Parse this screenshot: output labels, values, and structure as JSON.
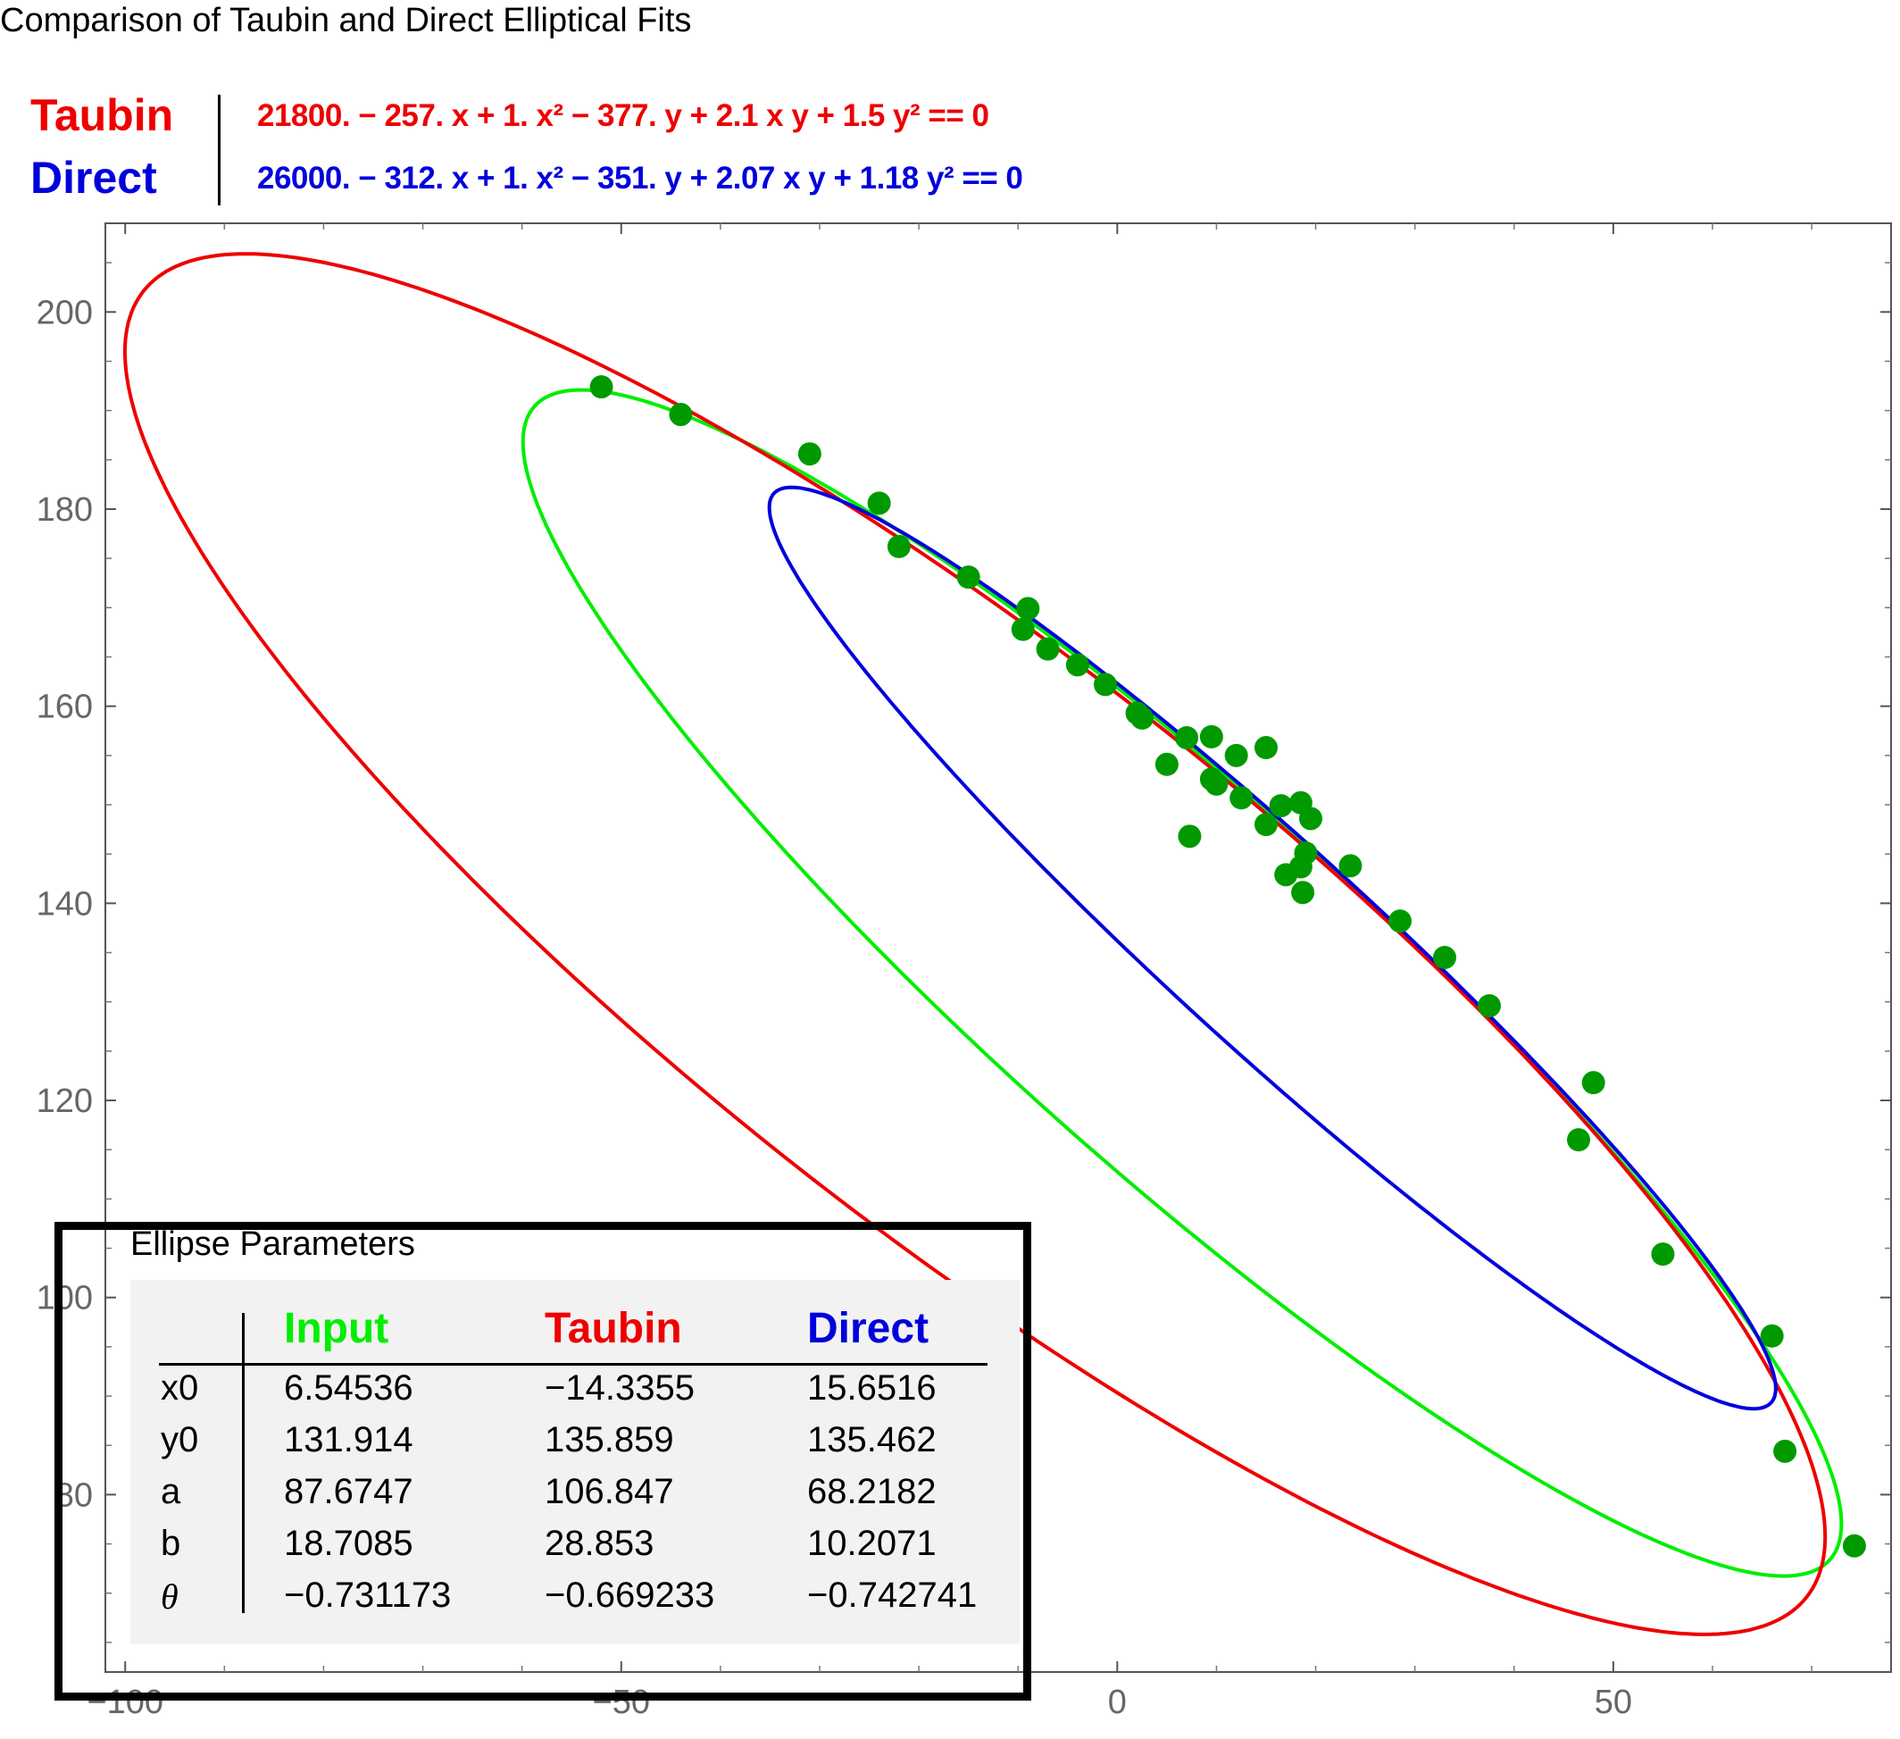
{
  "title": "Comparison of Taubin and Direct Elliptical Fits",
  "legend": {
    "taubin": {
      "name": "Taubin",
      "equation": "21800. − 257. x + 1. x² − 377. y + 2.1 x y + 1.5 y² == 0",
      "color": "#ee0000"
    },
    "direct": {
      "name": "Direct",
      "equation": "26000. − 312. x + 1. x² − 351. y + 2.07 x y + 1.18 y² == 0",
      "color": "#0000dd"
    }
  },
  "chart_data": {
    "type": "scatter",
    "title": "Comparison of Taubin and Direct Elliptical Fits",
    "xlabel": "",
    "ylabel": "",
    "xlim": [
      -102,
      78
    ],
    "ylim": [
      62,
      209
    ],
    "x_ticks": [
      -100,
      -50,
      0,
      50
    ],
    "x_tick_labels": [
      "-100",
      "-50",
      "0",
      "50"
    ],
    "y_ticks": [
      80,
      100,
      120,
      140,
      160,
      180,
      200
    ],
    "y_tick_labels": [
      "80",
      "100",
      "120",
      "140",
      "160",
      "180",
      "200"
    ],
    "grid": false,
    "points": {
      "color": "#009a00",
      "x": [
        -52,
        -44,
        -31,
        -24,
        -22,
        -15,
        -9,
        -9.5,
        -7,
        -4,
        -1.2,
        2,
        2.5,
        5,
        7,
        7.3,
        9.5,
        9.5,
        10,
        12,
        12.5,
        15,
        15,
        16.5,
        17,
        18.5,
        18.5,
        18.7,
        19,
        19.5,
        23.5,
        28.5,
        33,
        37.5,
        46.5,
        48,
        55,
        66,
        67.3,
        74.3
      ],
      "y": [
        192.4,
        189.6,
        185.6,
        180.6,
        176.2,
        173.1,
        169.9,
        167.8,
        165.8,
        164.2,
        162.2,
        159.3,
        158.8,
        154.1,
        156.8,
        146.8,
        156.9,
        152.6,
        152.1,
        155.0,
        150.7,
        155.8,
        148.0,
        149.9,
        142.9,
        150.2,
        143.7,
        141.1,
        145.1,
        148.6,
        143.8,
        138.2,
        134.5,
        129.6,
        116.0,
        121.8,
        104.4,
        96.1,
        84.4,
        74.8
      ]
    },
    "series": [
      {
        "name": "Input",
        "color": "#00ee00",
        "x0": 6.54536,
        "y0": 131.914,
        "a": 87.6747,
        "b": 18.7085,
        "theta": -0.731173
      },
      {
        "name": "Taubin",
        "color": "#ee0000",
        "x0": -14.3355,
        "y0": 135.859,
        "a": 106.847,
        "b": 28.853,
        "theta": -0.669233
      },
      {
        "name": "Direct",
        "color": "#0000dd",
        "x0": 15.6516,
        "y0": 135.462,
        "a": 68.2182,
        "b": 10.2071,
        "theta": -0.742741
      }
    ]
  },
  "params_table": {
    "title": "Ellipse Parameters",
    "headers": [
      "Input",
      "Taubin",
      "Direct"
    ],
    "header_colors": [
      "#00ee00",
      "#ee0000",
      "#0000dd"
    ],
    "row_labels": [
      "x0",
      "y0",
      "a",
      "b",
      "θ"
    ],
    "rows": [
      [
        "6.54536",
        "−14.3355",
        "15.6516"
      ],
      [
        "131.914",
        "135.859",
        "135.462"
      ],
      [
        "87.6747",
        "106.847",
        "68.2182"
      ],
      [
        "18.7085",
        "28.853",
        "10.2071"
      ],
      [
        "−0.731173",
        "−0.669233",
        "−0.742741"
      ]
    ]
  }
}
